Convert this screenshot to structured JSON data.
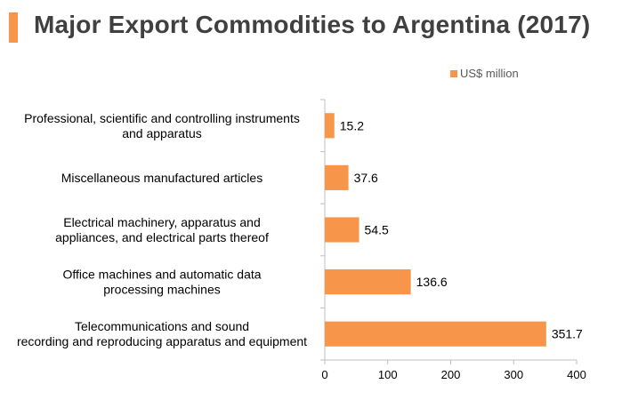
{
  "header": {
    "title": "Major Export Commodities to Argentina (2017)",
    "accent_color": "#f7964a"
  },
  "chart_data": {
    "type": "bar",
    "orientation": "horizontal",
    "title": "Major Export Commodities to Argentina (2017)",
    "categories": [
      [
        "Professional, scientific and controlling instruments",
        "and apparatus"
      ],
      [
        "Miscellaneous manufactured articles"
      ],
      [
        "Electrical machinery, apparatus and",
        "appliances, and electrical parts thereof"
      ],
      [
        "Office machines and automatic data",
        "processing machines"
      ],
      [
        "Telecommunications and sound",
        "recording and reproducing apparatus and equipment"
      ]
    ],
    "series": [
      {
        "name": "US$ million",
        "values": [
          15.2,
          37.6,
          54.5,
          136.6,
          351.7
        ],
        "value_labels": [
          "15.2",
          "37.6",
          "54.5",
          "136.6",
          "351.7"
        ],
        "color": "#f7964a"
      }
    ],
    "xlim": [
      0,
      400
    ],
    "x_ticks": [
      0,
      100,
      200,
      300,
      400
    ],
    "x_tick_labels": [
      "0",
      "100",
      "200",
      "300",
      "400"
    ],
    "grid": false,
    "legend_position": "top-right"
  }
}
